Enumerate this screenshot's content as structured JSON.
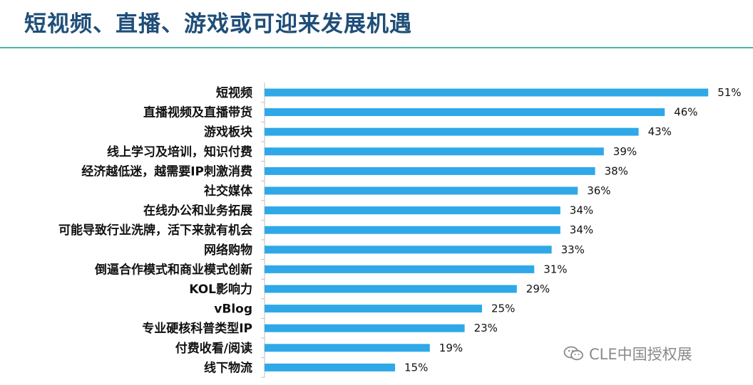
{
  "title": "短视频、直播、游戏或可迎来发展机遇",
  "watermark": {
    "text": "CLE中国授权展",
    "icon": "wechat-icon"
  },
  "colors": {
    "bar": "#2fa8e8",
    "title": "#1f4e79",
    "rule": "#4bb3a8"
  },
  "chart_data": {
    "type": "bar",
    "orientation": "horizontal",
    "categories": [
      "短视频",
      "直播视频及直播带货",
      "游戏板块",
      "线上学习及培训，知识付费",
      "经济越低迷，越需要IP刺激消费",
      "社交媒体",
      "在线办公和业务拓展",
      "可能导致行业洗牌，活下来就有机会",
      "网络购物",
      "倒逼合作模式和商业模式创新",
      "KOL影响力",
      "vBlog",
      "专业硬核科普类型IP",
      "付费收看/阅读",
      "线下物流"
    ],
    "values": [
      51,
      46,
      43,
      39,
      38,
      36,
      34,
      34,
      33,
      31,
      29,
      25,
      23,
      19,
      15
    ],
    "value_labels": [
      "51%",
      "46%",
      "43%",
      "39%",
      "38%",
      "36%",
      "34%",
      "34%",
      "33%",
      "31%",
      "29%",
      "25%",
      "23%",
      "19%",
      "15%"
    ],
    "unit": "%",
    "grid": false,
    "legend": "none"
  }
}
